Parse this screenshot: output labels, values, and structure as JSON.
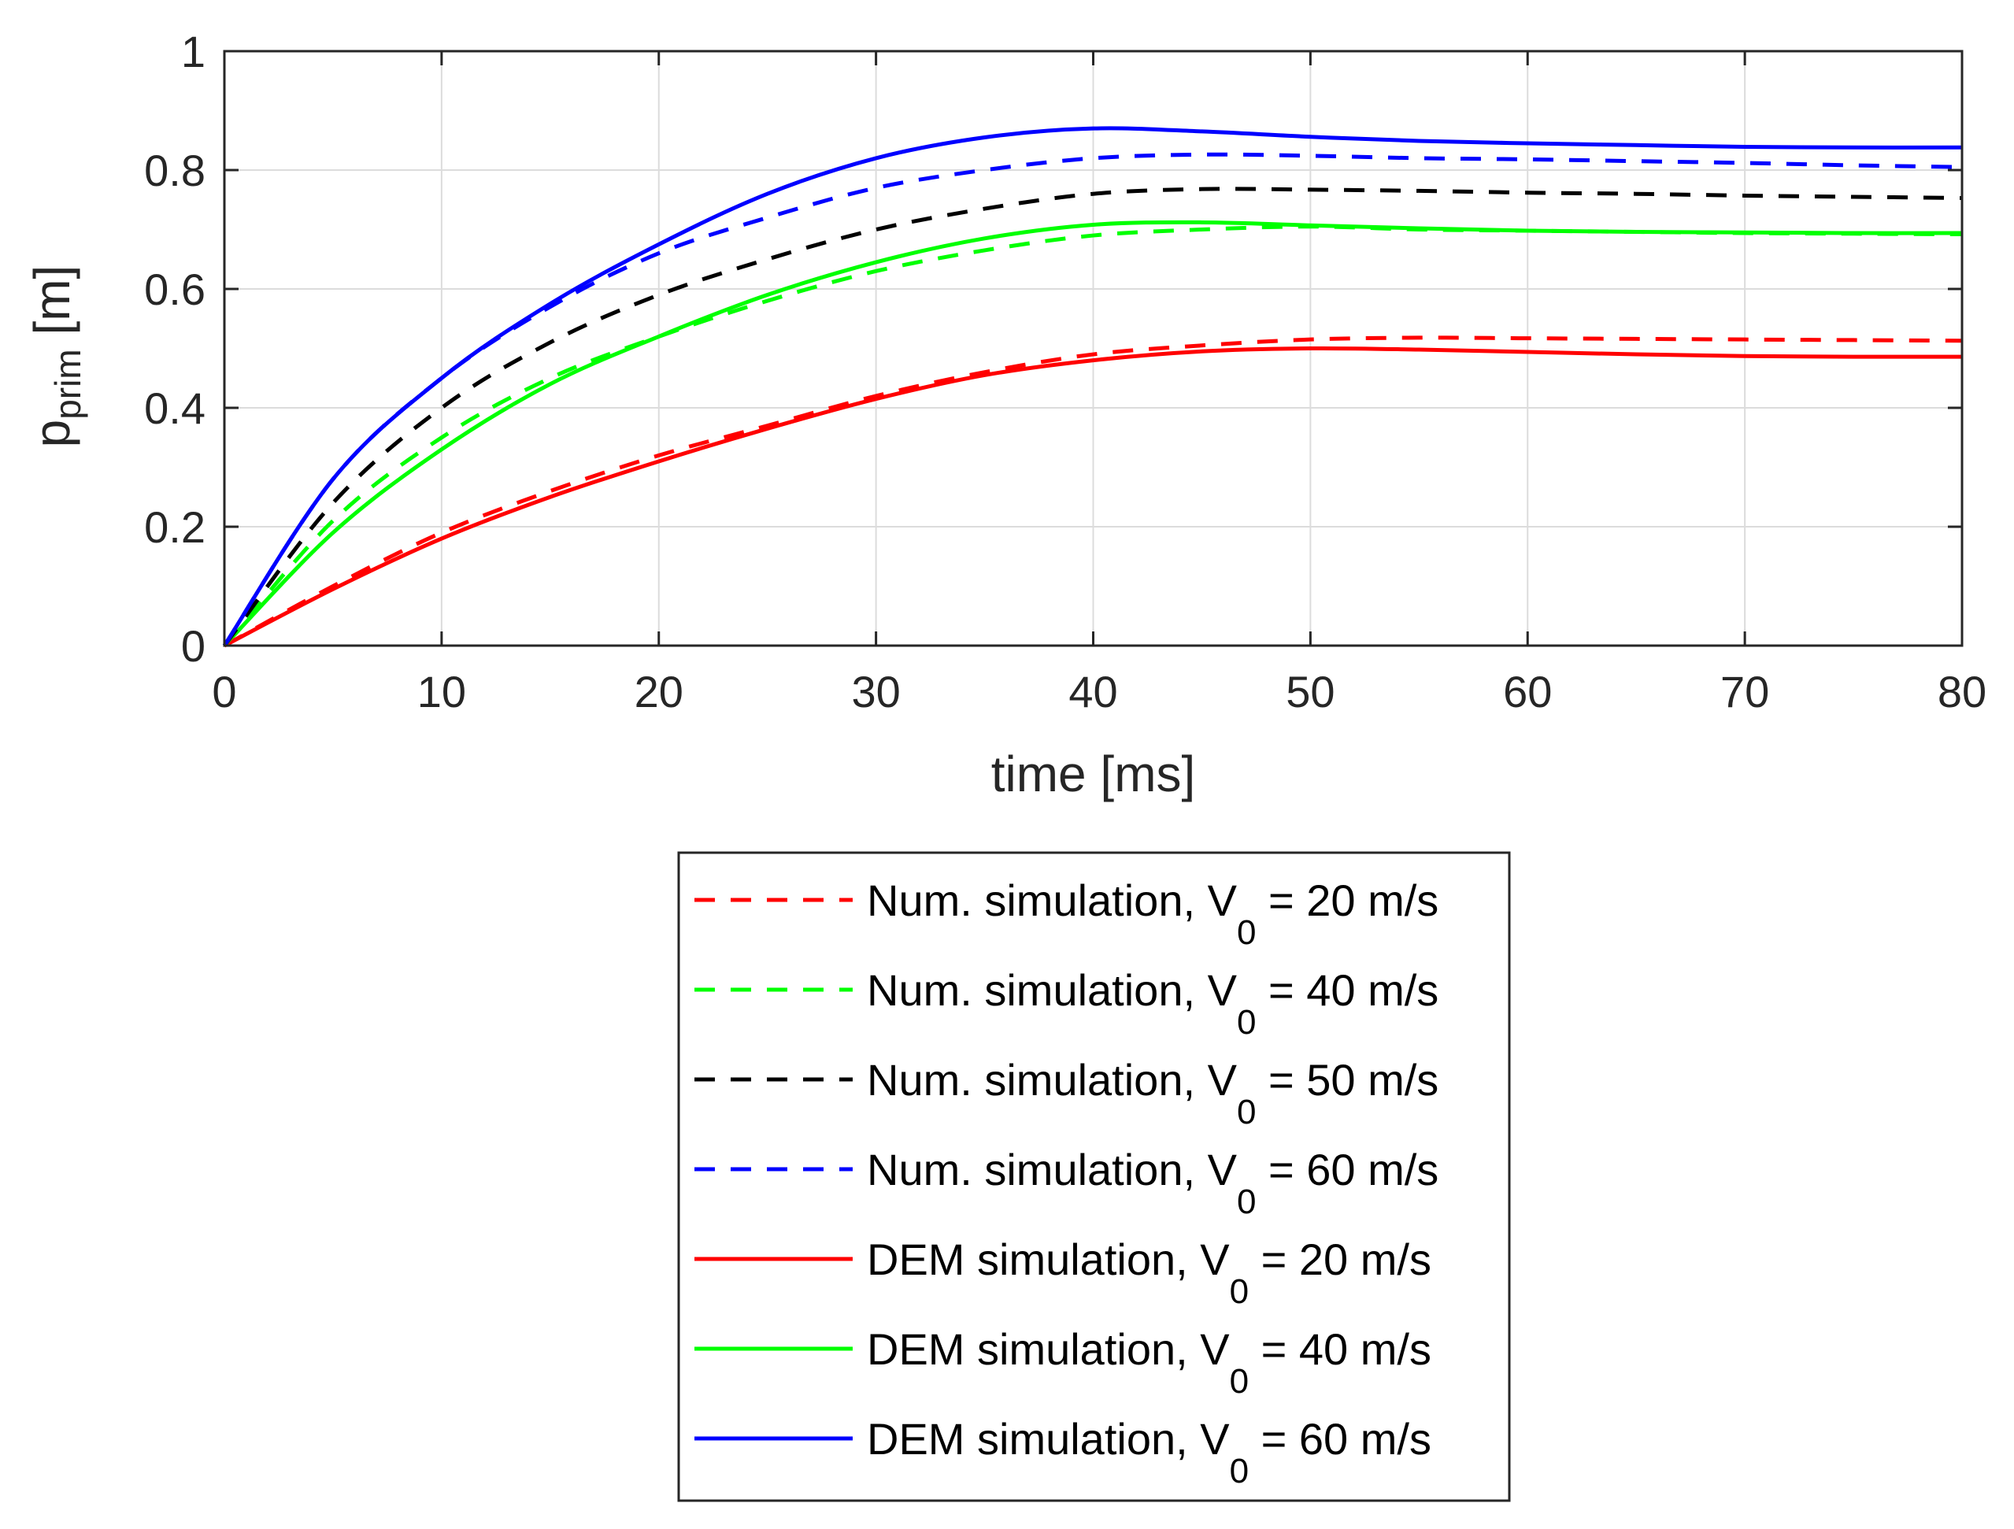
{
  "chart_data": {
    "type": "line",
    "xlabel": "time [ms]",
    "ylabel": {
      "main": "p",
      "sub": "prim",
      "unit": " [m]"
    },
    "xlim": [
      0,
      80
    ],
    "ylim": [
      0,
      1
    ],
    "x_ticks": [
      0,
      10,
      20,
      30,
      40,
      50,
      60,
      70,
      80
    ],
    "x_tick_labels": [
      "0",
      "10",
      "20",
      "30",
      "40",
      "50",
      "60",
      "70",
      "80"
    ],
    "y_ticks": [
      0,
      0.2,
      0.4,
      0.6,
      0.8,
      1
    ],
    "y_tick_labels": [
      "0",
      "0.2",
      "0.4",
      "0.6",
      "0.8",
      "1"
    ],
    "grid": true,
    "legend_position": "below",
    "colors": {
      "red": "#ff0000",
      "green": "#00ff00",
      "black": "#000000",
      "blue": "#0000ff",
      "axis": "#262626",
      "grid": "#dcdcdc"
    },
    "series": [
      {
        "name": "Num. simulation, V0 = 20 m/s",
        "label_prefix": "Num. simulation, V",
        "label_sub": "0",
        "label_suffix": " = 20 m/s",
        "color": "#ff0000",
        "dash": "dashed",
        "x": [
          0,
          5,
          10,
          15,
          20,
          25,
          30,
          35,
          40,
          45,
          50,
          55,
          60,
          65,
          70,
          75,
          80
        ],
        "y": [
          0,
          0.1,
          0.19,
          0.26,
          0.32,
          0.37,
          0.42,
          0.46,
          0.49,
          0.505,
          0.515,
          0.518,
          0.517,
          0.516,
          0.515,
          0.514,
          0.513
        ]
      },
      {
        "name": "Num. simulation, V0 = 40 m/s",
        "label_prefix": "Num. simulation, V",
        "label_sub": "0",
        "label_suffix": " = 40 m/s",
        "color": "#00ff00",
        "dash": "dashed",
        "x": [
          0,
          5,
          10,
          15,
          20,
          25,
          30,
          35,
          40,
          45,
          50,
          55,
          60,
          65,
          70,
          75,
          80
        ],
        "y": [
          0,
          0.21,
          0.35,
          0.45,
          0.52,
          0.58,
          0.63,
          0.665,
          0.69,
          0.7,
          0.705,
          0.7,
          0.698,
          0.696,
          0.694,
          0.693,
          0.692
        ]
      },
      {
        "name": "Num. simulation, V0 = 50 m/s",
        "label_prefix": "Num. simulation, V",
        "label_sub": "0",
        "label_suffix": " = 50 m/s",
        "color": "#000000",
        "dash": "dashed",
        "x": [
          0,
          5,
          10,
          15,
          20,
          25,
          30,
          35,
          40,
          45,
          50,
          55,
          60,
          65,
          70,
          75,
          80
        ],
        "y": [
          0,
          0.24,
          0.4,
          0.51,
          0.59,
          0.65,
          0.7,
          0.735,
          0.76,
          0.768,
          0.767,
          0.765,
          0.762,
          0.76,
          0.757,
          0.755,
          0.753
        ]
      },
      {
        "name": "Num. simulation, V0 = 60 m/s",
        "label_prefix": "Num. simulation, V",
        "label_sub": "0",
        "label_suffix": " = 60 m/s",
        "color": "#0000ff",
        "dash": "dashed",
        "x": [
          0,
          5,
          10,
          15,
          20,
          25,
          30,
          35,
          40,
          45,
          50,
          55,
          60,
          65,
          70,
          75,
          80
        ],
        "y": [
          0,
          0.28,
          0.45,
          0.57,
          0.66,
          0.72,
          0.77,
          0.8,
          0.82,
          0.826,
          0.824,
          0.82,
          0.818,
          0.815,
          0.812,
          0.808,
          0.805
        ]
      },
      {
        "name": "DEM simulation, V0 = 20 m/s",
        "label_prefix": "DEM simulation, V",
        "label_sub": "0",
        "label_suffix": " = 20 m/s",
        "color": "#ff0000",
        "dash": "solid",
        "x": [
          0,
          5,
          10,
          15,
          20,
          25,
          30,
          35,
          40,
          45,
          50,
          55,
          60,
          65,
          70,
          75,
          80
        ],
        "y": [
          0,
          0.095,
          0.18,
          0.25,
          0.31,
          0.365,
          0.415,
          0.455,
          0.48,
          0.495,
          0.5,
          0.498,
          0.494,
          0.49,
          0.487,
          0.486,
          0.486
        ]
      },
      {
        "name": "DEM simulation, V0 = 40 m/s",
        "label_prefix": "DEM simulation, V",
        "label_sub": "0",
        "label_suffix": " = 40 m/s",
        "color": "#00ff00",
        "dash": "solid",
        "x": [
          0,
          5,
          10,
          15,
          20,
          25,
          30,
          35,
          40,
          45,
          50,
          55,
          60,
          65,
          70,
          75,
          80
        ],
        "y": [
          0,
          0.19,
          0.33,
          0.44,
          0.52,
          0.59,
          0.645,
          0.685,
          0.708,
          0.712,
          0.707,
          0.702,
          0.698,
          0.696,
          0.695,
          0.694,
          0.694
        ]
      },
      {
        "name": "DEM simulation, V0 = 60 m/s",
        "label_prefix": "DEM simulation, V",
        "label_sub": "0",
        "label_suffix": " = 60 m/s",
        "color": "#0000ff",
        "dash": "solid",
        "x": [
          0,
          5,
          10,
          15,
          20,
          25,
          30,
          35,
          40,
          45,
          50,
          55,
          60,
          65,
          70,
          75,
          80
        ],
        "y": [
          0,
          0.28,
          0.45,
          0.575,
          0.675,
          0.76,
          0.82,
          0.855,
          0.87,
          0.865,
          0.856,
          0.849,
          0.845,
          0.842,
          0.839,
          0.838,
          0.838
        ]
      }
    ]
  }
}
